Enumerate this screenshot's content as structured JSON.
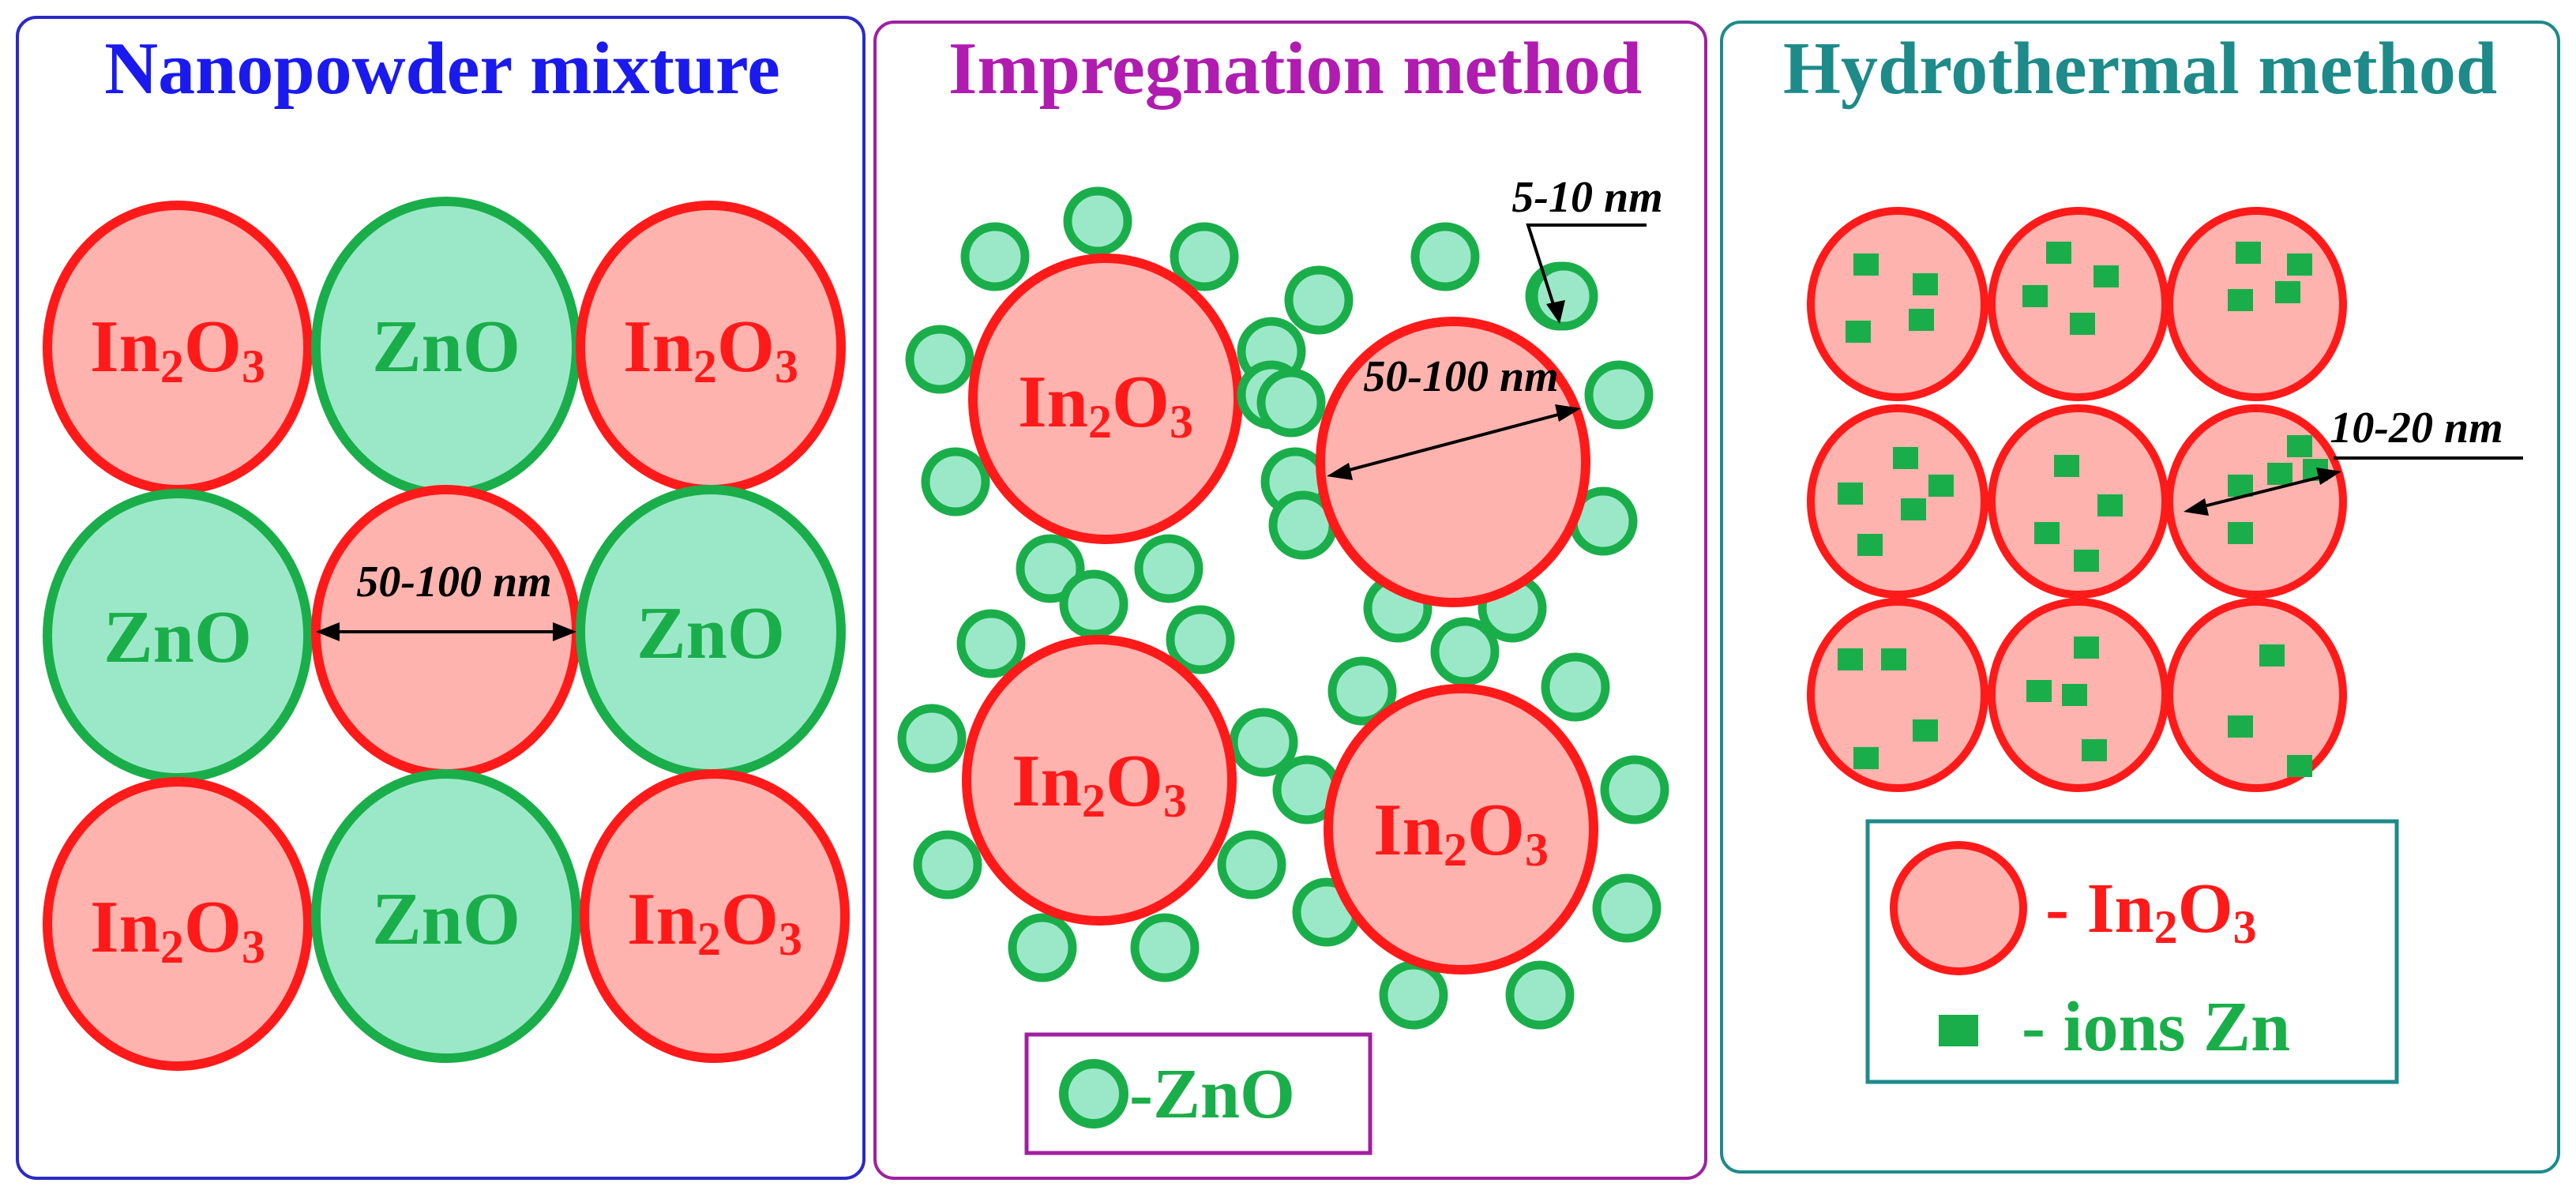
{
  "colors": {
    "in2o3_fill": "#ffb3ae",
    "in2o3_stroke": "#ff1a1a",
    "zno_fill": "#9be8c8",
    "zno_stroke": "#1aae4a",
    "panel1_title": "#1a1aee",
    "panel2_title": "#b01cb0",
    "panel3_title": "#1e8a8a",
    "ion": "#1aae4a"
  },
  "panels": {
    "nanopowder": {
      "title": "Nanopowder mixture",
      "labels": {
        "in2o3_main": "In",
        "in2o3_sub": "2",
        "in2o3_o": "O",
        "in2o3_sub2": "3",
        "zno": "ZnO"
      },
      "dimension": "50-100 nm"
    },
    "impregnation": {
      "title": "Impregnation method",
      "dimension_small": "5-10 nm",
      "dimension_large": "50-100 nm",
      "legend_label": "-ZnO"
    },
    "hydrothermal": {
      "title": "Hydrothermal method",
      "dimension": "10-20 nm",
      "legend_in2o3": "- In",
      "legend_ions": "- ions Zn"
    }
  }
}
